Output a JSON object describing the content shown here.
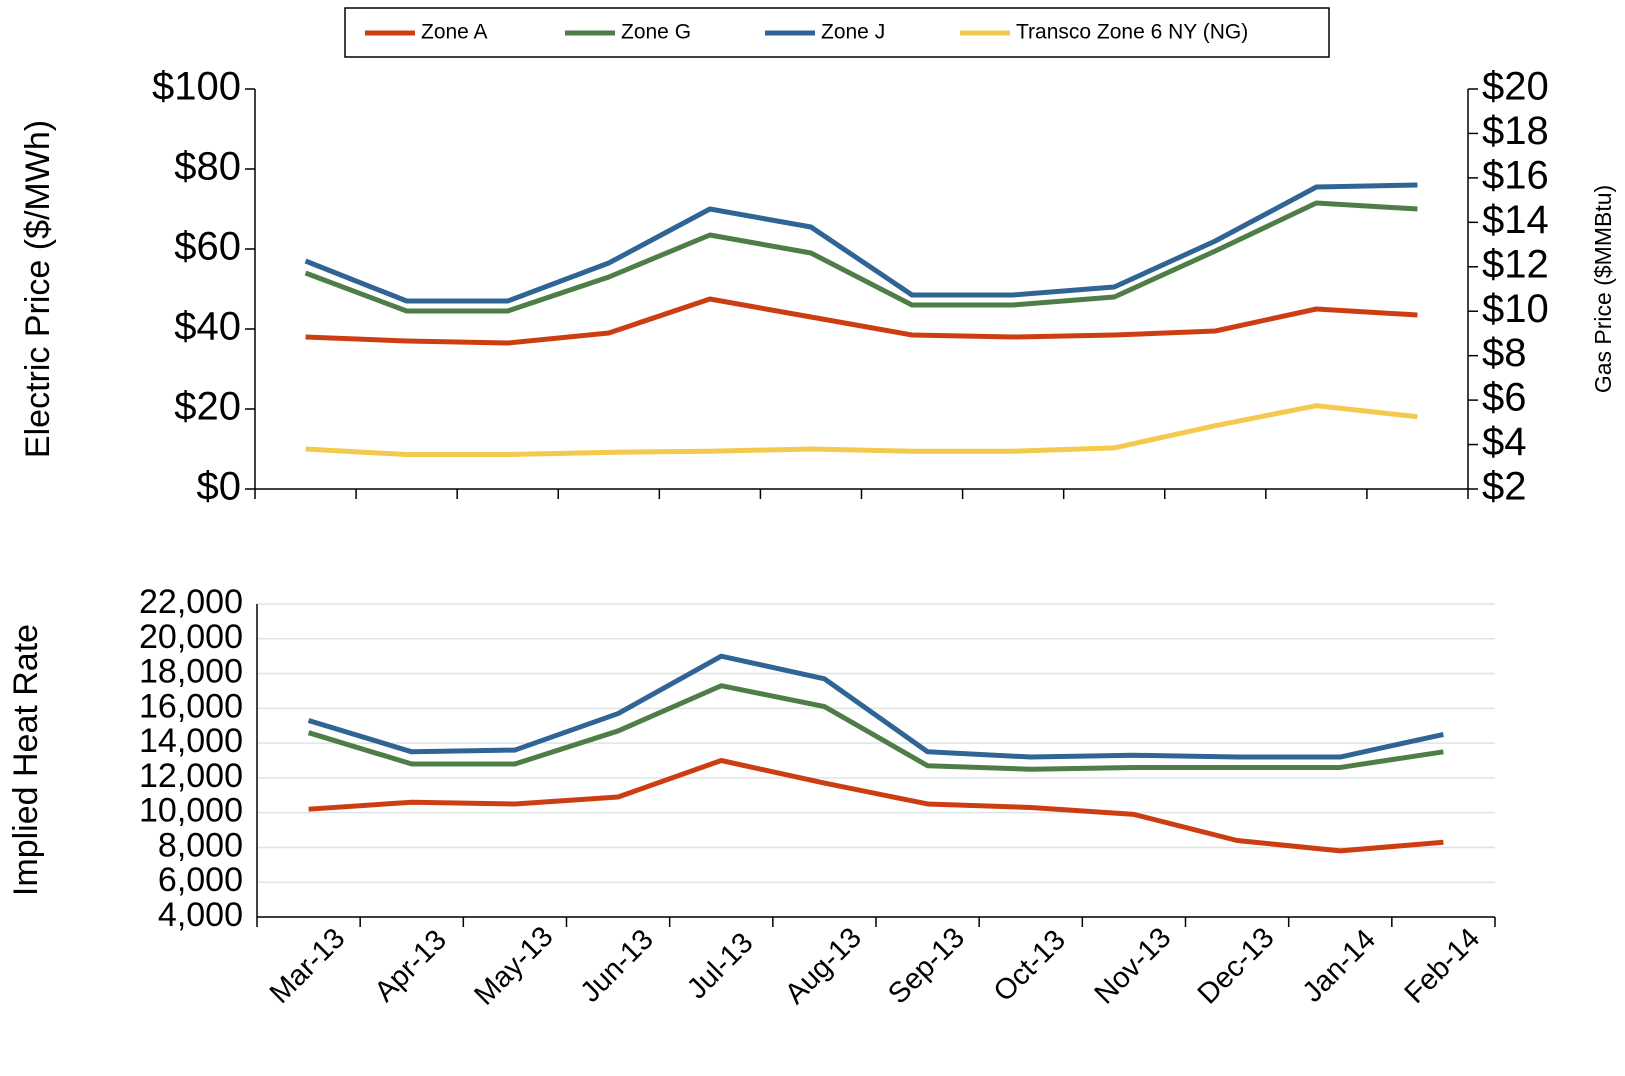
{
  "chart_data": [
    {
      "type": "line",
      "y_label": "Electric Price ($/MWh)",
      "y2_label": "Gas Price ($MMBtu)",
      "ylim": [
        0,
        100
      ],
      "yticks": [
        {
          "value": 0,
          "label": "$0"
        },
        {
          "value": 20,
          "label": "$20"
        },
        {
          "value": 40,
          "label": "$40"
        },
        {
          "value": 60,
          "label": "$60"
        },
        {
          "value": 80,
          "label": "$80"
        },
        {
          "value": 100,
          "label": "$100"
        }
      ],
      "y2lim": [
        2,
        20
      ],
      "y2ticks": [
        {
          "value": 2,
          "label": "$2"
        },
        {
          "value": 4,
          "label": "$4"
        },
        {
          "value": 6,
          "label": "$6"
        },
        {
          "value": 8,
          "label": "$8"
        },
        {
          "value": 10,
          "label": "$10"
        },
        {
          "value": 12,
          "label": "$12"
        },
        {
          "value": 14,
          "label": "$14"
        },
        {
          "value": 16,
          "label": "$16"
        },
        {
          "value": 18,
          "label": "$18"
        },
        {
          "value": 20,
          "label": "$20"
        }
      ],
      "grid": false,
      "series": [
        {
          "name": "Zone A",
          "color": "#cc3e12",
          "values": [
            38,
            37,
            36.5,
            39,
            47.5,
            43,
            38.5,
            38,
            38.5,
            39.5,
            45,
            43.5
          ]
        },
        {
          "name": "Zone G",
          "color": "#4e7d47",
          "values": [
            54,
            44.5,
            44.5,
            53,
            63.5,
            59,
            46,
            46,
            48,
            59.5,
            71.5,
            70
          ]
        },
        {
          "name": "Zone J",
          "color": "#2f6495",
          "values": [
            57,
            47,
            47,
            56.5,
            70,
            65.5,
            48.5,
            48.5,
            50.5,
            62,
            75.5,
            76
          ]
        },
        {
          "name": "Transco Zone 6 NY (NG)",
          "color": "#f3c94e",
          "axis": "y2",
          "values": [
            3.8,
            3.55,
            3.55,
            3.65,
            3.7,
            3.8,
            3.7,
            3.7,
            3.85,
            4.85,
            5.75,
            5.25
          ]
        }
      ]
    },
    {
      "type": "line",
      "y_label": "Implied Heat Rate",
      "categories": [
        "Mar-13",
        "Apr-13",
        "May-13",
        "Jun-13",
        "Jul-13",
        "Aug-13",
        "Sep-13",
        "Oct-13",
        "Nov-13",
        "Dec-13",
        "Jan-14",
        "Feb-14"
      ],
      "ylim": [
        4000,
        22000
      ],
      "yticks": [
        {
          "value": 4000,
          "label": "4,000"
        },
        {
          "value": 6000,
          "label": "6,000"
        },
        {
          "value": 8000,
          "label": "8,000"
        },
        {
          "value": 10000,
          "label": "10,000"
        },
        {
          "value": 12000,
          "label": "12,000"
        },
        {
          "value": 14000,
          "label": "14,000"
        },
        {
          "value": 16000,
          "label": "16,000"
        },
        {
          "value": 18000,
          "label": "18,000"
        },
        {
          "value": 20000,
          "label": "20,000"
        },
        {
          "value": 22000,
          "label": "22,000"
        }
      ],
      "grid": true,
      "series": [
        {
          "color": "#cc3e12",
          "values": [
            10200,
            10600,
            10500,
            10900,
            13000,
            11700,
            10500,
            10300,
            9900,
            8400,
            7800,
            8300
          ]
        },
        {
          "color": "#4e7d47",
          "values": [
            14600,
            12800,
            12800,
            14700,
            17300,
            16100,
            12700,
            12500,
            12600,
            12600,
            12600,
            13500
          ]
        },
        {
          "color": "#2f6495",
          "values": [
            15300,
            13500,
            13600,
            15700,
            19000,
            17700,
            13500,
            13200,
            13300,
            13200,
            13200,
            14500
          ]
        }
      ]
    }
  ]
}
